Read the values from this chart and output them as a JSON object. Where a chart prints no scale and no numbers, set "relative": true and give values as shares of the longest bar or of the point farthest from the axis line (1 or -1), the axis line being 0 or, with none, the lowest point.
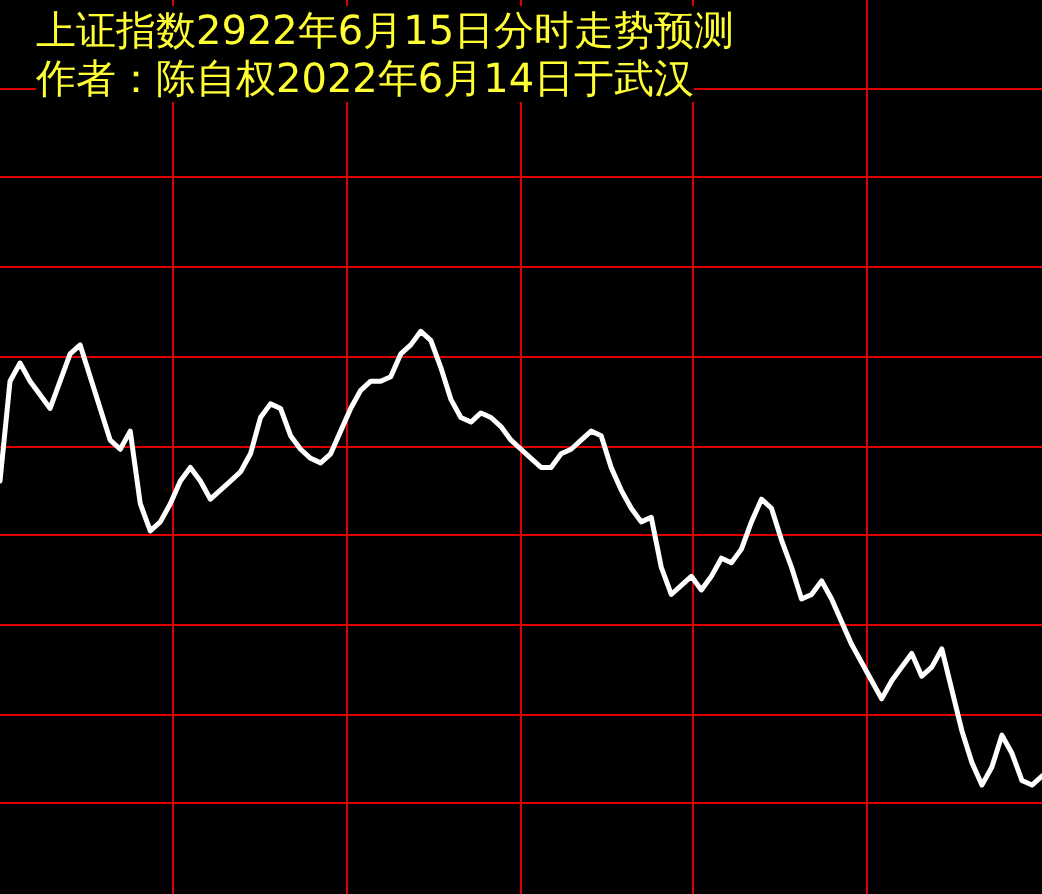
{
  "chart_data": {
    "type": "line",
    "title": "上证指数2922年6月15日分时走势预测",
    "subtitle": "作者：陈自权2022年6月14日于武汉",
    "relative": true,
    "grid": true,
    "legend": false,
    "marker": "none",
    "line_style": "solid",
    "categories": [
      null,
      null,
      null,
      null,
      null,
      null,
      null,
      null,
      null,
      null,
      null,
      null,
      null,
      null,
      null,
      null,
      null,
      null,
      null,
      null,
      null,
      null,
      null,
      null,
      null,
      null,
      null,
      null,
      null,
      null,
      null,
      null,
      null,
      null,
      null,
      null,
      null,
      null,
      null,
      null,
      null,
      null,
      null,
      null,
      null,
      null,
      null,
      null,
      null,
      null,
      null,
      null,
      null,
      null,
      null,
      null,
      null,
      null,
      null,
      null,
      null,
      null,
      null,
      null,
      null,
      null,
      null,
      null,
      null,
      null,
      null,
      null,
      null,
      null,
      null,
      null,
      null,
      null,
      null,
      null,
      null,
      null,
      null,
      null,
      null,
      null,
      null,
      null,
      null,
      null,
      null,
      null,
      null,
      null,
      null,
      null,
      null,
      null,
      null,
      null,
      null,
      null,
      null,
      null,
      null
    ],
    "series": [
      {
        "color": "#ffffff",
        "values": [
          0.67,
          0.89,
          0.93,
          0.89,
          0.86,
          0.83,
          0.89,
          0.95,
          0.97,
          0.9,
          0.83,
          0.76,
          0.74,
          0.78,
          0.62,
          0.56,
          0.58,
          0.62,
          0.67,
          0.7,
          0.67,
          0.63,
          0.65,
          0.67,
          0.69,
          0.73,
          0.81,
          0.84,
          0.83,
          0.77,
          0.74,
          0.72,
          0.71,
          0.73,
          0.78,
          0.83,
          0.87,
          0.89,
          0.89,
          0.9,
          0.95,
          0.97,
          1.0,
          0.98,
          0.92,
          0.85,
          0.81,
          0.8,
          0.82,
          0.81,
          0.79,
          0.76,
          0.74,
          0.72,
          0.7,
          0.7,
          0.73,
          0.74,
          0.76,
          0.78,
          0.77,
          0.7,
          0.65,
          0.61,
          0.58,
          0.59,
          0.48,
          0.42,
          0.44,
          0.46,
          0.43,
          0.46,
          0.5,
          0.49,
          0.52,
          0.58,
          0.63,
          0.61,
          0.54,
          0.48,
          0.41,
          0.42,
          0.45,
          0.41,
          0.36,
          0.31,
          0.27,
          0.23,
          0.19,
          0.23,
          0.26,
          0.29,
          0.24,
          0.26,
          0.3,
          0.21,
          0.12,
          0.05,
          0,
          0.04,
          0.11,
          0.07,
          0.01,
          0,
          0.02
        ]
      }
    ]
  }
}
